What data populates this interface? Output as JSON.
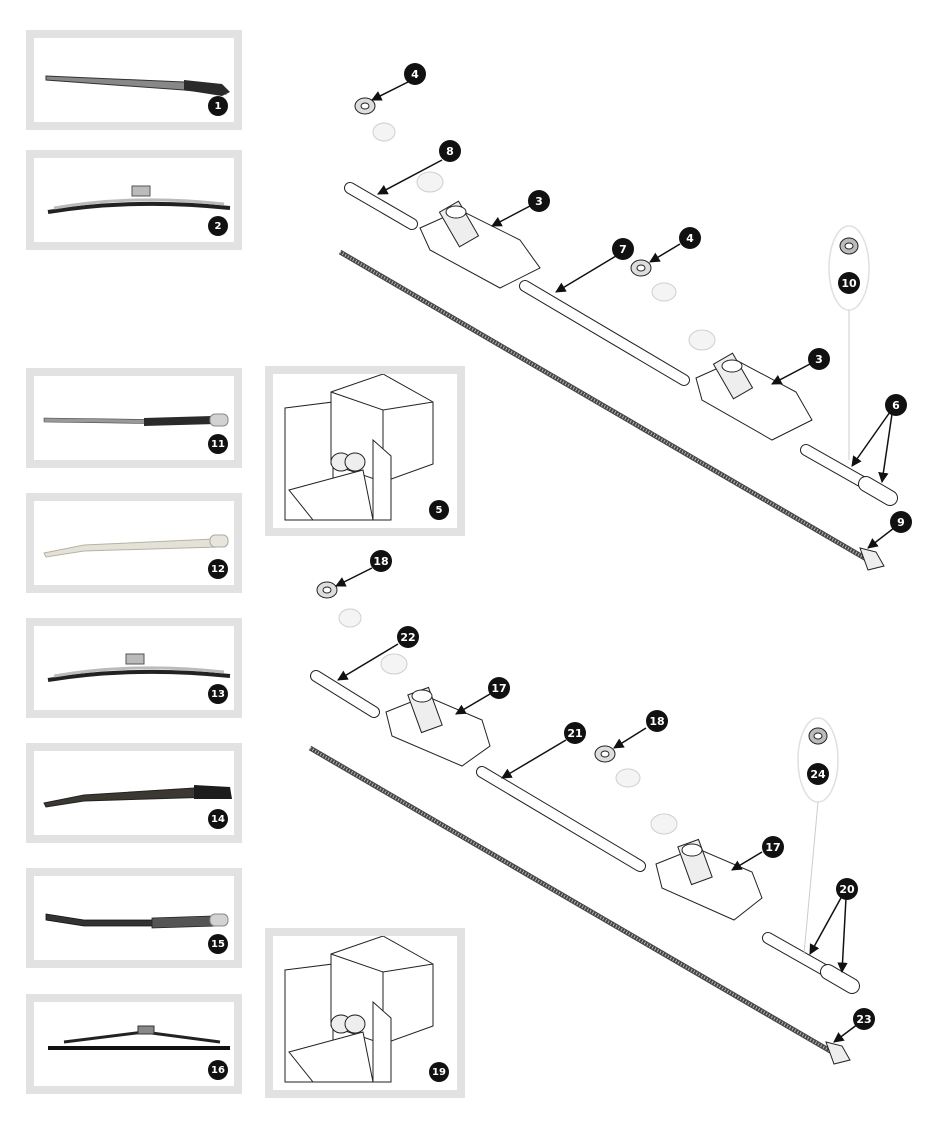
{
  "callouts": {
    "c1": "1",
    "c2": "2",
    "c3a": "3",
    "c3b": "3",
    "c4a": "4",
    "c4b": "4",
    "c5": "5",
    "c6": "6",
    "c7": "7",
    "c8": "8",
    "c9": "9",
    "c10": "10",
    "c11": "11",
    "c12": "12",
    "c13": "13",
    "c14": "14",
    "c15": "15",
    "c16": "16",
    "c17a": "17",
    "c17b": "17",
    "c18a": "18",
    "c18b": "18",
    "c19": "19",
    "c20": "20",
    "c21": "21",
    "c22": "22",
    "c23": "23",
    "c24": "24"
  },
  "colors": {
    "panel_border": "#e2e2e2",
    "badge_fill": "#111111",
    "line": "#222222",
    "ghost_part": "#cfcfcf",
    "chrome": "#c8c8c8",
    "black_arm": "#2a2a2a",
    "silver_arm": "#d9d9d0"
  }
}
